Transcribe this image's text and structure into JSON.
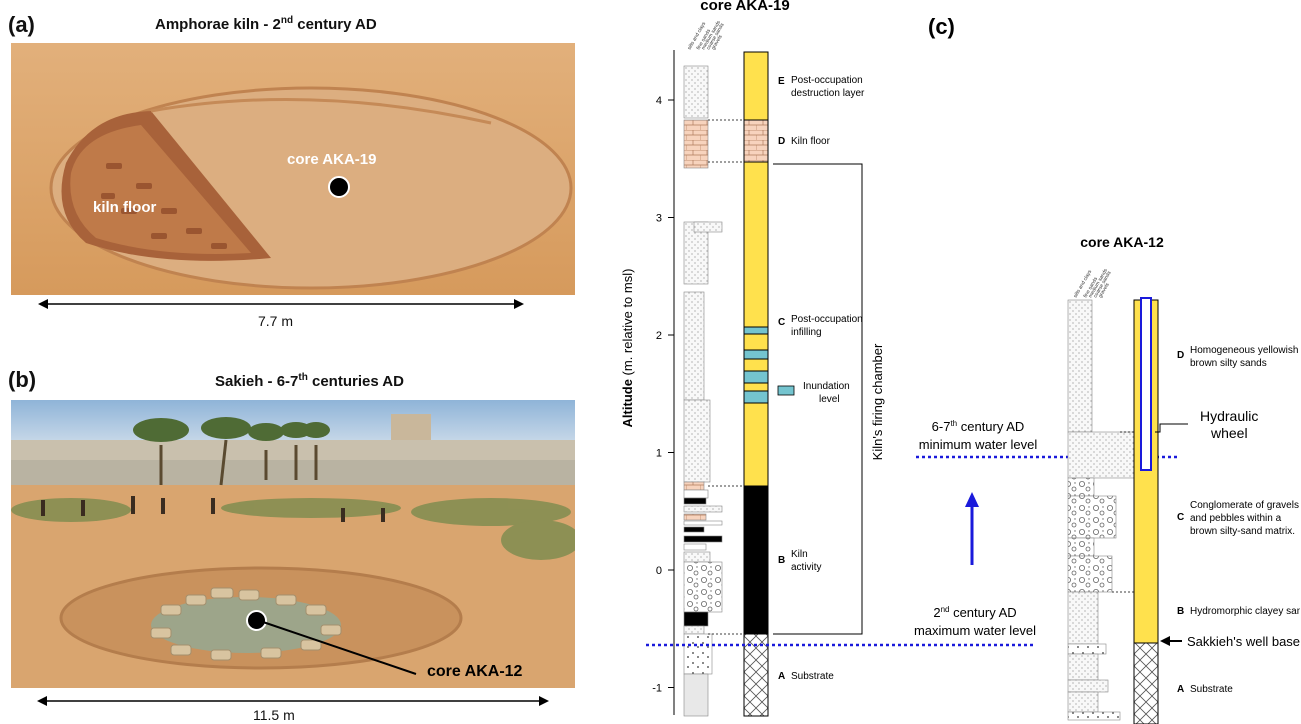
{
  "panel_a": {
    "label": "(a)",
    "title_main": "Amphorae kiln - 2",
    "title_sup": "nd",
    "title_end": " century AD",
    "kiln_floor": "kiln floor",
    "core": "core AKA-19",
    "scale": "7.7 m"
  },
  "panel_b": {
    "label": "(b)",
    "title_main": "Sakieh - 6-7",
    "title_sup": "th",
    "title_end": " centuries AD",
    "core": "core AKA-12",
    "scale": "11.5 m"
  },
  "core19": {
    "title": "core AKA-19",
    "y_axis_bold": "Altitude",
    "y_axis_rest": " (m. relative to msl)",
    "ticks": [
      "4",
      "3",
      "2",
      "1",
      "0",
      "-1"
    ],
    "units": [
      {
        "letter": "E",
        "line1": "Post-occupation",
        "line2": "destruction layer"
      },
      {
        "letter": "D",
        "line1": "Kiln floor",
        "line2": ""
      },
      {
        "letter": "C",
        "line1": "Post-occupation",
        "line2": "infilling"
      },
      {
        "letter": "B",
        "line1": "Kiln",
        "line2": "activity"
      },
      {
        "letter": "A",
        "line1": "Substrate",
        "line2": ""
      }
    ],
    "inundation_line1": "Inundation",
    "inundation_line2": "level",
    "chamber": "Kiln's firing chamber",
    "grain_headers": [
      "silts and clays",
      "fine sands",
      "medium sands",
      "coarse sands",
      "gravels"
    ]
  },
  "panel_c": {
    "label": "(c)",
    "core_title": "core AKA-12",
    "water_upper_l1a": "6-7",
    "water_upper_sup": "th",
    "water_upper_l1b": " century AD",
    "water_upper_l2": "minimum water level",
    "water_lower_l1a": "2",
    "water_lower_sup": "nd",
    "water_lower_l1b": " century AD",
    "water_lower_l2": "maximum water level",
    "hydraulic_l1": "Hydraulic",
    "hydraulic_l2": "wheel",
    "units": [
      {
        "letter": "D",
        "line1": "Homogeneous yellowish",
        "line2": "brown silty sands",
        "line3": ""
      },
      {
        "letter": "C",
        "line1": "Conglomerate of gravels",
        "line2": "and pebbles within a",
        "line3": "brown silty-sand matrix."
      },
      {
        "letter": "B",
        "line1": "Hydromorphic clayey san",
        "line2": "",
        "line3": ""
      },
      {
        "letter": "A",
        "line1": "Substrate",
        "line2": "",
        "line3": ""
      }
    ],
    "well_base": "Sakkieh's well base",
    "grain_headers": [
      "silts and clays",
      "fine sands",
      "medium sands",
      "coarse sands",
      "gravels"
    ]
  },
  "colors": {
    "sand": "#ffe14d",
    "kiln_activity": "#000000",
    "inundation": "#74c4cf",
    "brick": "#f7d3bd",
    "water_line": "#1a1adb",
    "photo_ground": "#d9a46c"
  }
}
